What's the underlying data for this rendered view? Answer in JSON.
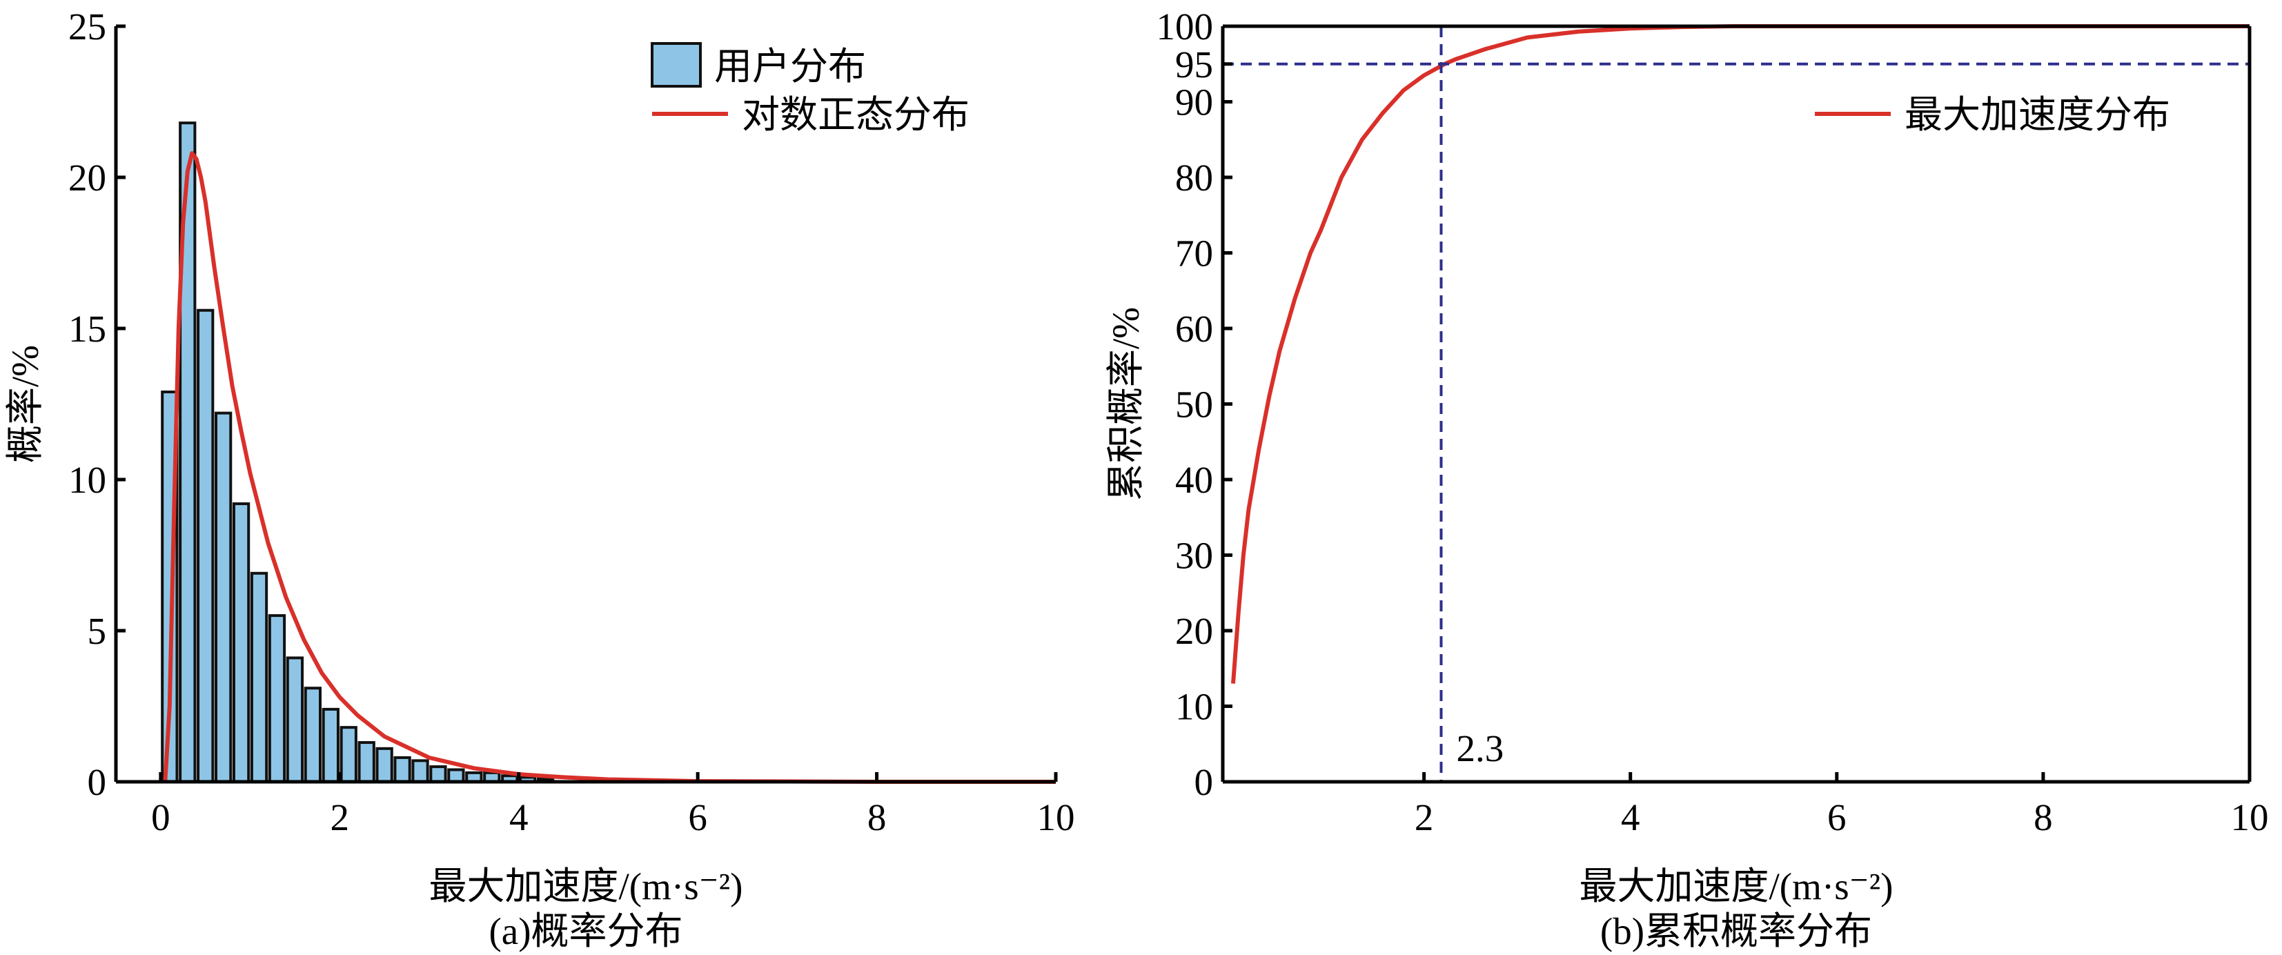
{
  "chart_data": [
    {
      "type": "bar",
      "caption": "(a)概率分布",
      "xlabel": "最大加速度/(m·s⁻²)",
      "ylabel": "概率/%",
      "xlim": [
        -0.5,
        10
      ],
      "ylim": [
        0,
        25
      ],
      "xticks": [
        0,
        2,
        4,
        6,
        8,
        10
      ],
      "yticks": [
        0,
        5,
        10,
        15,
        20,
        25
      ],
      "grid": false,
      "legend_position": "top-right",
      "bar_width": 0.2,
      "series": [
        {
          "name": "用户分布",
          "kind": "bar",
          "color": "#8ec5e6",
          "x": [
            0.1,
            0.3,
            0.5,
            0.7,
            0.9,
            1.1,
            1.3,
            1.5,
            1.7,
            1.9,
            2.1,
            2.3,
            2.5,
            2.7,
            2.9,
            3.1,
            3.3,
            3.5,
            3.7,
            3.9,
            4.1,
            4.3
          ],
          "values": [
            12.9,
            21.8,
            15.6,
            12.2,
            9.2,
            6.9,
            5.5,
            4.1,
            3.1,
            2.4,
            1.8,
            1.3,
            1.1,
            0.8,
            0.7,
            0.5,
            0.4,
            0.3,
            0.3,
            0.2,
            0.15,
            0.1
          ]
        },
        {
          "name": "对数正态分布",
          "kind": "line",
          "color": "#d9302a",
          "x": [
            0.05,
            0.1,
            0.15,
            0.2,
            0.25,
            0.3,
            0.35,
            0.4,
            0.45,
            0.5,
            0.6,
            0.7,
            0.8,
            0.9,
            1.0,
            1.2,
            1.4,
            1.6,
            1.8,
            2.0,
            2.2,
            2.5,
            3.0,
            3.5,
            4.0,
            4.5,
            5.0,
            6.0,
            8.0,
            10.0
          ],
          "values": [
            0,
            2.5,
            9,
            15,
            18.5,
            20.2,
            20.8,
            20.6,
            20,
            19.2,
            17,
            15,
            13.1,
            11.6,
            10.2,
            7.9,
            6.1,
            4.7,
            3.6,
            2.8,
            2.2,
            1.5,
            0.8,
            0.45,
            0.25,
            0.15,
            0.08,
            0.02,
            0,
            0
          ]
        }
      ]
    },
    {
      "type": "line",
      "caption": "(b)累积概率分布",
      "xlabel": "最大加速度/(m·s⁻²)",
      "ylabel": "累积概率/%",
      "xlim": [
        0.05,
        10
      ],
      "ylim": [
        0,
        100
      ],
      "xticks": [
        2,
        4,
        6,
        8,
        10
      ],
      "yticks": [
        0,
        10,
        20,
        30,
        40,
        50,
        60,
        70,
        80,
        90,
        95,
        100
      ],
      "grid": false,
      "legend_position": "top-right",
      "series": [
        {
          "name": "最大加速度分布",
          "color": "#d9302a",
          "x": [
            0.15,
            0.2,
            0.25,
            0.3,
            0.4,
            0.5,
            0.6,
            0.75,
            0.9,
            1.0,
            1.2,
            1.4,
            1.6,
            1.8,
            2.0,
            2.2,
            2.3,
            2.6,
            3.0,
            3.5,
            4.0,
            4.5,
            5.0,
            6.0,
            8.0,
            10.0
          ],
          "values": [
            13,
            22,
            30,
            36,
            44,
            51,
            57,
            64,
            70,
            73,
            80,
            85,
            88.5,
            91.5,
            93.5,
            95,
            95.6,
            97,
            98.5,
            99.3,
            99.7,
            99.9,
            100,
            100,
            100,
            100
          ]
        }
      ],
      "reference_lines": {
        "color": "#2e2e8c",
        "y": 95,
        "x": 2.3,
        "x_label": "2.3"
      }
    }
  ]
}
